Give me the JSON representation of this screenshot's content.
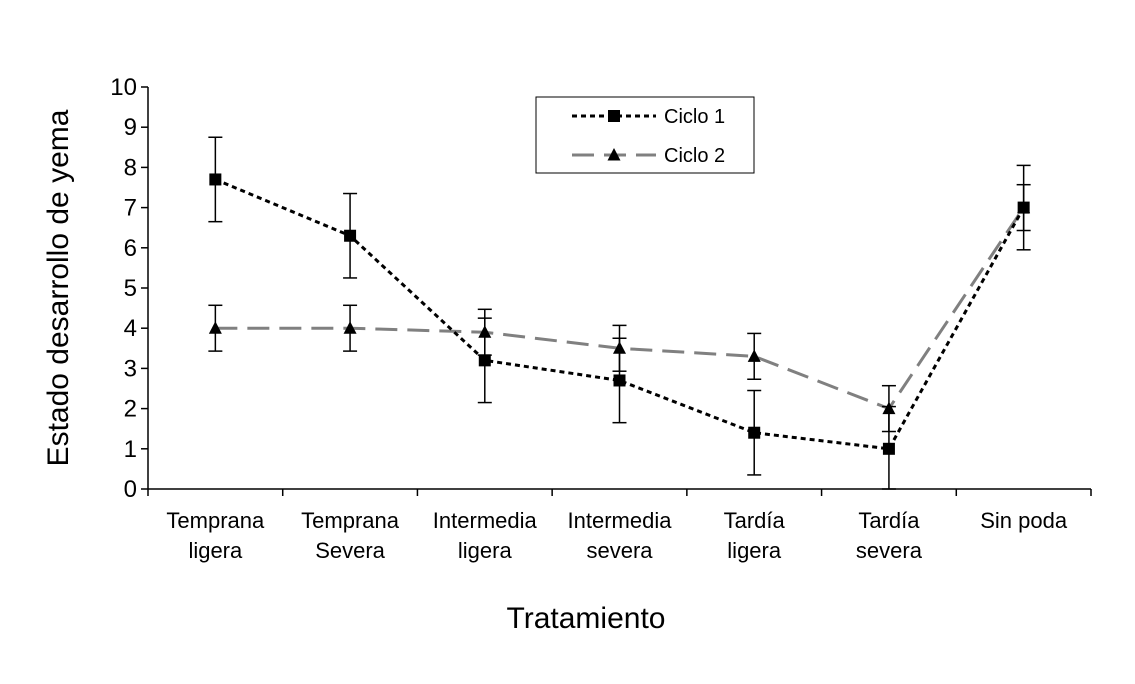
{
  "chart_data": {
    "type": "line",
    "title": "",
    "xlabel": "Tratamiento",
    "ylabel": "Estado desarrollo de yema",
    "ylim": [
      0,
      10
    ],
    "yticks": [
      0,
      1,
      2,
      3,
      4,
      5,
      6,
      7,
      8,
      9,
      10
    ],
    "categories": [
      [
        "Temprana",
        "ligera"
      ],
      [
        "Temprana",
        "Severa"
      ],
      [
        "Intermedia",
        "ligera"
      ],
      [
        "Intermedia",
        "severa"
      ],
      [
        "Tardía",
        "ligera"
      ],
      [
        "Tardía",
        "severa"
      ],
      [
        "Sin poda"
      ]
    ],
    "legend_position": "top-center",
    "series": [
      {
        "name": "Ciclo 1",
        "marker": "square",
        "line_style": "dotted",
        "color": "#000000",
        "values": [
          7.7,
          6.3,
          3.2,
          2.7,
          1.4,
          1.0,
          7.0
        ],
        "error": [
          1.05,
          1.05,
          1.05,
          1.05,
          1.05,
          1.05,
          1.05
        ]
      },
      {
        "name": "Ciclo 2",
        "marker": "triangle",
        "line_style": "dashed",
        "color": "#808080",
        "values": [
          4.0,
          4.0,
          3.9,
          3.5,
          3.3,
          2.0,
          7.0
        ],
        "error": [
          0.57,
          0.57,
          0.57,
          0.57,
          0.57,
          0.57,
          0.57
        ]
      }
    ]
  }
}
